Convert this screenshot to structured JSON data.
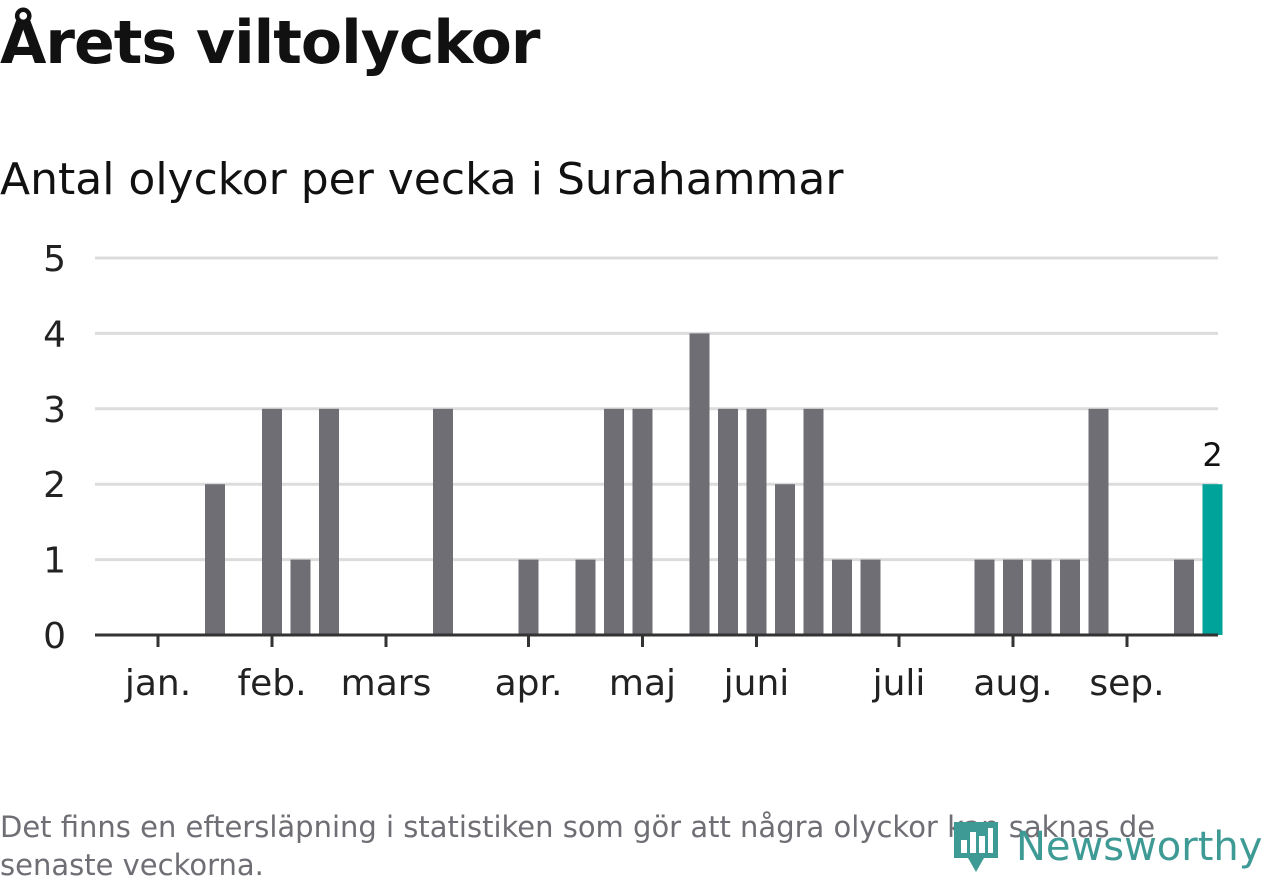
{
  "title": "Årets viltolyckor",
  "subtitle": "Antal olyckor per vecka i Surahammar",
  "footnote": "Det finns en eftersläpning i statistiken som gör att några olyckor kan saknas de senaste veckorna.",
  "brand": {
    "name": "Newsworthy",
    "color": "#3e9a95"
  },
  "chart_data": {
    "type": "bar",
    "x": [
      1,
      2,
      3,
      4,
      5,
      6,
      7,
      8,
      9,
      10,
      11,
      12,
      13,
      14,
      15,
      16,
      17,
      18,
      19,
      20,
      21,
      22,
      23,
      24,
      25,
      26,
      27,
      28,
      29,
      30,
      31,
      32,
      33,
      34,
      35,
      36,
      37,
      38
    ],
    "values": [
      0,
      0,
      2,
      0,
      3,
      1,
      3,
      0,
      0,
      0,
      3,
      0,
      0,
      1,
      0,
      1,
      3,
      3,
      0,
      4,
      3,
      3,
      2,
      3,
      1,
      1,
      0,
      0,
      0,
      1,
      1,
      1,
      1,
      3,
      0,
      0,
      1,
      2
    ],
    "highlight_index": 37,
    "highlight_label": "2",
    "bar_color": "#6f6e74",
    "highlight_color": "#00a39a",
    "ylim": [
      0,
      5
    ],
    "yticks": [
      "0",
      "1",
      "2",
      "3",
      "4",
      "5"
    ],
    "month_ticks": [
      {
        "label": "jan.",
        "x": 1
      },
      {
        "label": "feb.",
        "x": 5
      },
      {
        "label": "mars",
        "x": 9
      },
      {
        "label": "apr.",
        "x": 14
      },
      {
        "label": "maj",
        "x": 18
      },
      {
        "label": "juni",
        "x": 22
      },
      {
        "label": "juli",
        "x": 27
      },
      {
        "label": "aug.",
        "x": 31
      },
      {
        "label": "sep.",
        "x": 35
      }
    ],
    "grid": true
  }
}
